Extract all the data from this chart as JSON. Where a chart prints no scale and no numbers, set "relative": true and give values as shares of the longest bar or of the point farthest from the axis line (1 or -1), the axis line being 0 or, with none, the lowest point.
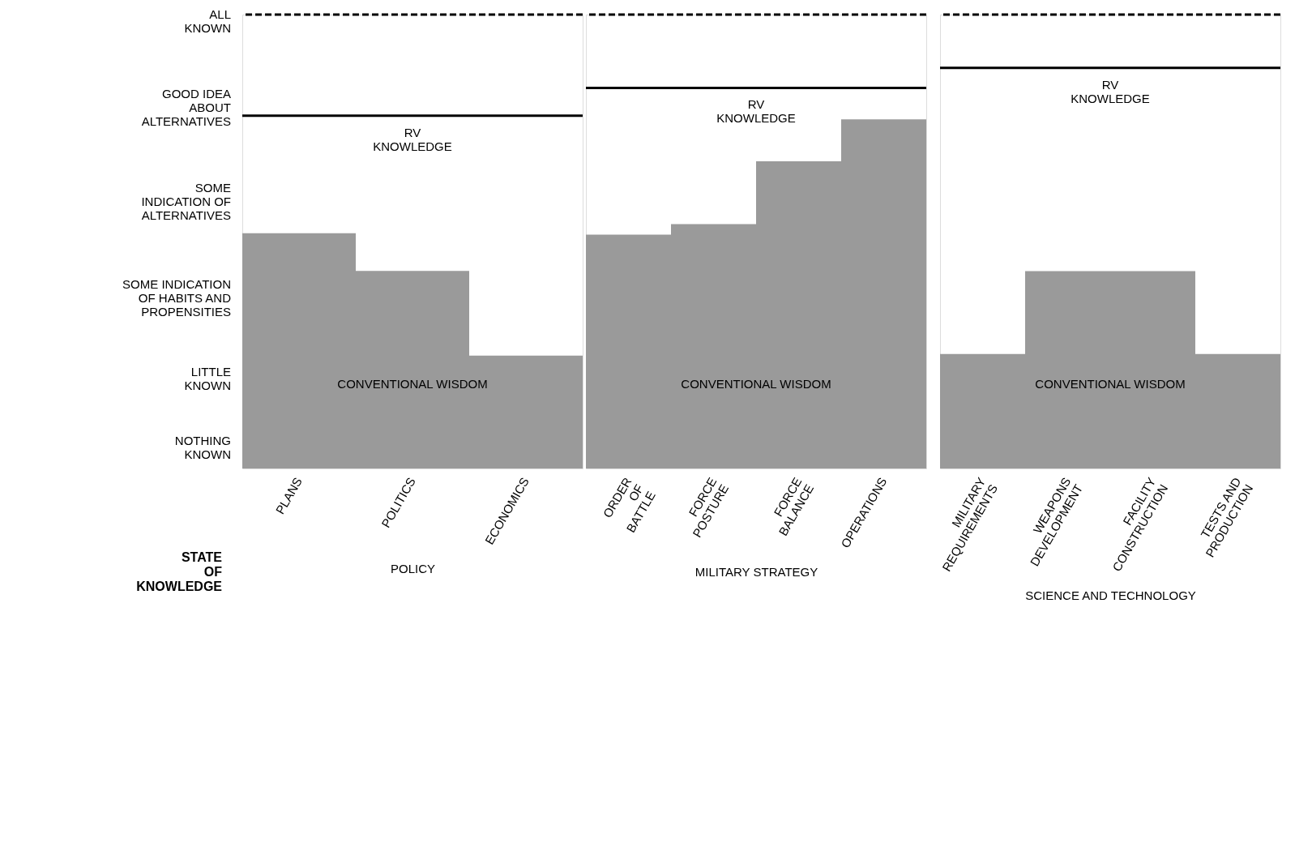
{
  "chart_data": [
    {
      "type": "bar",
      "relative": true,
      "xlabel": "POLICY",
      "categories": [
        "PLANS",
        "POLITICS",
        "ECONOMICS"
      ],
      "series": [
        {
          "name": "CONVENTIONAL WISDOM",
          "color": "#9a9a9a",
          "values": [
            1,
            0.84,
            0.48
          ]
        }
      ],
      "ref_lines": [
        {
          "axis": "y",
          "value": 1.5,
          "label": "RV\nKNOWLEDGE",
          "color": "#000000",
          "line_style": "solid"
        },
        {
          "axis": "y",
          "value": 1.93,
          "label": null,
          "color": "#000000",
          "line_style": "dashed"
        }
      ],
      "annotations": [
        "ALL\nKNOWN",
        "GOOD IDEA\nABOUT\nALTERNATIVES",
        "SOME\nINDICATION OF\nALTERNATIVES",
        "SOME INDICATION\nOF HABITS AND\nPROPENSITIES",
        "LITTLE\nKNOWN",
        "NOTHING\nKNOWN",
        "STATE\nOF\nKNOWLEDGE"
      ]
    },
    {
      "type": "bar",
      "relative": true,
      "xlabel": "MILITARY STRATEGY",
      "categories": [
        "ORDER\nOF\nBATTLE",
        "FORCE\nPOSTURE",
        "FORCE\nBALANCE",
        "OPERATIONS"
      ],
      "series": [
        {
          "name": "CONVENTIONAL WISDOM",
          "color": "#9a9a9a",
          "values": [
            0.67,
            0.7,
            0.88,
            1
          ]
        }
      ],
      "ref_lines": [
        {
          "axis": "y",
          "value": 1.09,
          "label": "RV\nKNOWLEDGE",
          "color": "#000000",
          "line_style": "solid"
        },
        {
          "axis": "y",
          "value": 1.3,
          "label": null,
          "color": "#000000",
          "line_style": "dashed"
        }
      ]
    },
    {
      "type": "bar",
      "relative": true,
      "xlabel": "SCIENCE AND TECHNOLOGY",
      "categories": [
        "MILITARY\nREQUIREMENTS",
        "WEAPONS\nDEVELOPMENT",
        "FACILITY\nCONSTRUCTION",
        "TESTS AND\nPRODUCTION"
      ],
      "series": [
        {
          "name": "CONVENTIONAL WISDOM",
          "color": "#9a9a9a",
          "values": [
            0.58,
            1,
            1,
            0.58
          ]
        }
      ],
      "ref_lines": [
        {
          "axis": "y",
          "value": 2.03,
          "label": "RV\nKNOWLEDGE",
          "color": "#000000",
          "line_style": "solid"
        },
        {
          "axis": "y",
          "value": 2.3,
          "label": null,
          "color": "#000000",
          "line_style": "dashed"
        }
      ]
    }
  ]
}
